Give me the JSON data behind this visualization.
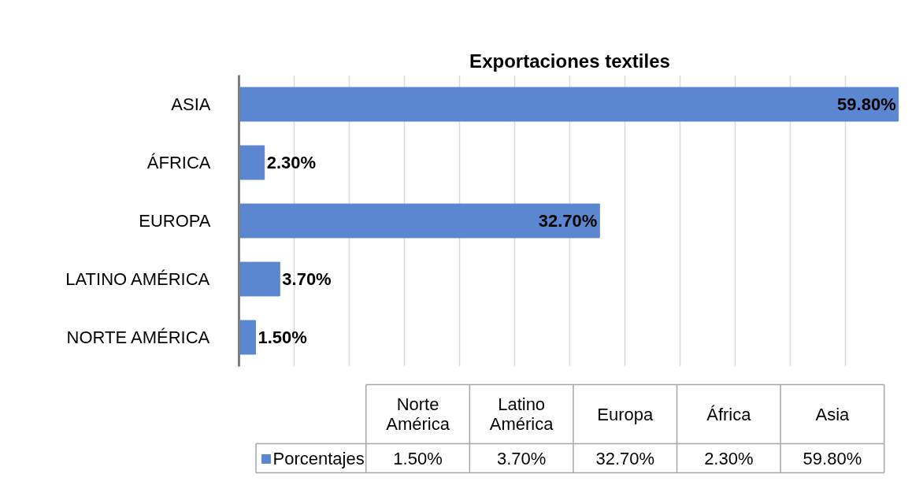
{
  "chart_data": {
    "type": "bar",
    "orientation": "horizontal",
    "title": "Exportaciones textiles",
    "categories": [
      "ASIA",
      "ÁFRICA",
      "EUROPA",
      "LATINO AMÉRICA",
      "NORTE AMÉRICA"
    ],
    "series": [
      {
        "name": "Porcentajes",
        "color": "#5b87d0",
        "values": [
          59.8,
          2.3,
          32.7,
          3.7,
          1.5
        ],
        "value_labels": [
          "59.80%",
          "2.30%",
          "32.70%",
          "3.70%",
          "1.50%"
        ]
      }
    ],
    "xlim": [
      0,
      60
    ],
    "xticks": [
      {
        "value": 0,
        "label": null
      },
      {
        "value": 5,
        "label": null
      },
      {
        "value": 10,
        "label": null
      },
      {
        "value": 15,
        "label": null
      },
      {
        "value": 20,
        "label": null
      },
      {
        "value": 25,
        "label": null
      },
      {
        "value": 30,
        "label": null
      },
      {
        "value": 35,
        "label": null
      },
      {
        "value": 40,
        "label": null
      },
      {
        "value": 45,
        "label": null
      },
      {
        "value": 50,
        "label": null
      },
      {
        "value": 55,
        "label": null
      }
    ],
    "grid": "x",
    "tick_labels": "y",
    "legend": "bottom",
    "annotations": [
      "Norte América",
      "Latino América",
      "Europa",
      "África",
      "Asia"
    ]
  }
}
